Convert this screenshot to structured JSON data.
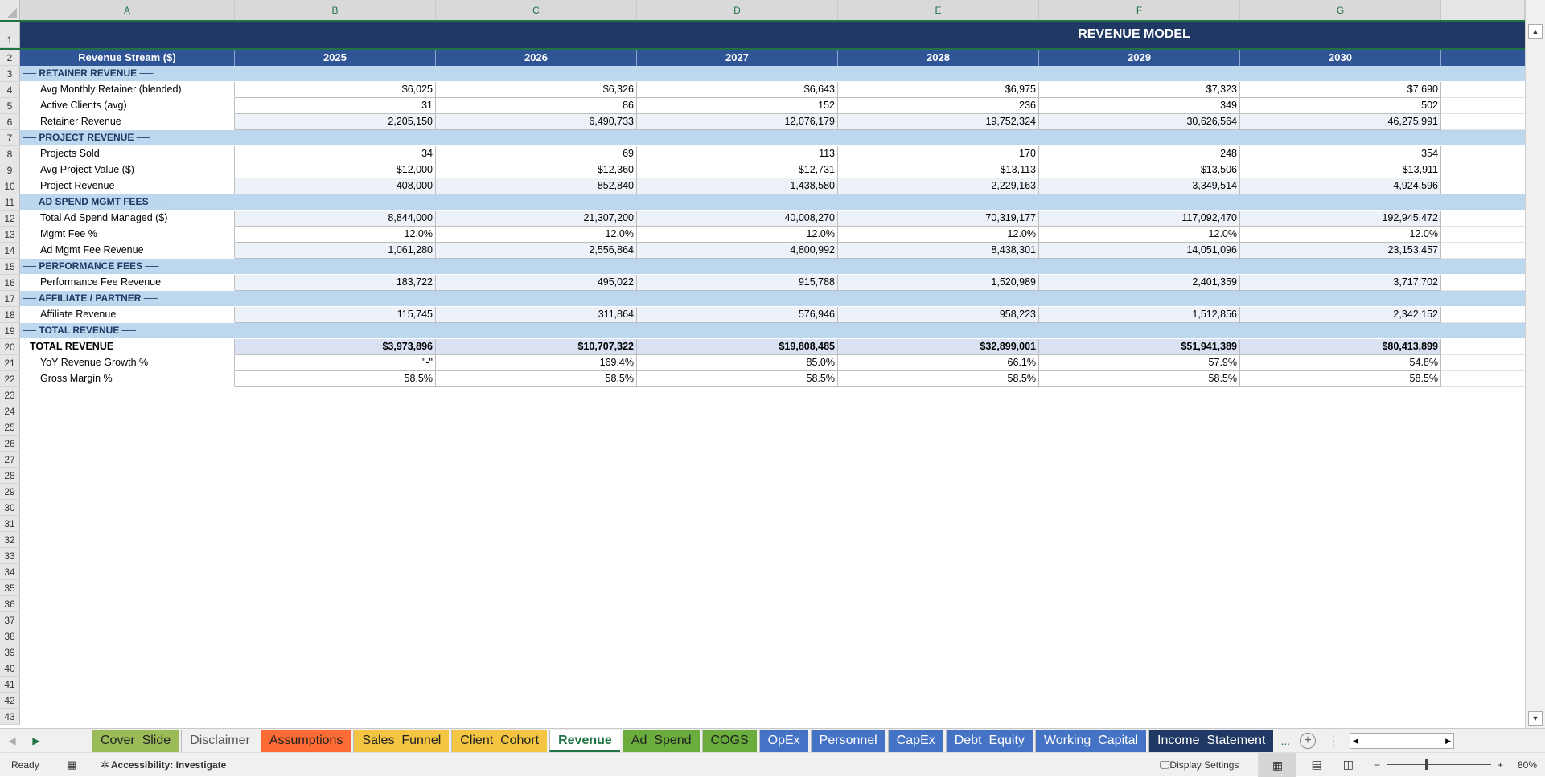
{
  "columns": [
    "A",
    "B",
    "C",
    "D",
    "E",
    "F",
    "G",
    ""
  ],
  "row_numbers": [
    1,
    2,
    3,
    4,
    5,
    6,
    7,
    8,
    9,
    10,
    11,
    12,
    13,
    14,
    15,
    16,
    17,
    18,
    19,
    20,
    21,
    22,
    23,
    24,
    25,
    26,
    27,
    28,
    29,
    30,
    31,
    32,
    33,
    34,
    35,
    36,
    37,
    38,
    39,
    40,
    41,
    42,
    43
  ],
  "title": "REVENUE MODEL",
  "header": {
    "label": "Revenue Stream ($)",
    "years": [
      "2025",
      "2026",
      "2027",
      "2028",
      "2029",
      "2030"
    ]
  },
  "rows": [
    {
      "type": "sec",
      "label": "── RETAINER REVENUE ──"
    },
    {
      "type": "data",
      "label": "Avg Monthly Retainer (blended)",
      "values": [
        "$6,025",
        "$6,326",
        "$6,643",
        "$6,975",
        "$7,323",
        "$7,690"
      ]
    },
    {
      "type": "data",
      "label": "Active Clients (avg)",
      "values": [
        "31",
        "86",
        "152",
        "236",
        "349",
        "502"
      ]
    },
    {
      "type": "shade",
      "label": "Retainer Revenue",
      "values": [
        "2,205,150",
        "6,490,733",
        "12,076,179",
        "19,752,324",
        "30,626,564",
        "46,275,991"
      ]
    },
    {
      "type": "sec",
      "label": "── PROJECT REVENUE ──"
    },
    {
      "type": "data",
      "label": "Projects Sold",
      "values": [
        "34",
        "69",
        "113",
        "170",
        "248",
        "354"
      ]
    },
    {
      "type": "data",
      "label": "Avg Project Value ($)",
      "values": [
        "$12,000",
        "$12,360",
        "$12,731",
        "$13,113",
        "$13,506",
        "$13,911"
      ]
    },
    {
      "type": "shade",
      "label": "Project Revenue",
      "values": [
        "408,000",
        "852,840",
        "1,438,580",
        "2,229,163",
        "3,349,514",
        "4,924,596"
      ]
    },
    {
      "type": "sec",
      "label": "── AD SPEND MGMT FEES ──"
    },
    {
      "type": "shade",
      "label": "Total Ad Spend Managed ($)",
      "values": [
        "8,844,000",
        "21,307,200",
        "40,008,270",
        "70,319,177",
        "117,092,470",
        "192,945,472"
      ]
    },
    {
      "type": "data",
      "label": "Mgmt Fee %",
      "values": [
        "12.0%",
        "12.0%",
        "12.0%",
        "12.0%",
        "12.0%",
        "12.0%"
      ]
    },
    {
      "type": "shade",
      "label": "Ad Mgmt Fee Revenue",
      "values": [
        "1,061,280",
        "2,556,864",
        "4,800,992",
        "8,438,301",
        "14,051,096",
        "23,153,457"
      ]
    },
    {
      "type": "sec",
      "label": "── PERFORMANCE FEES ──"
    },
    {
      "type": "shade",
      "label": "Performance Fee Revenue",
      "values": [
        "183,722",
        "495,022",
        "915,788",
        "1,520,989",
        "2,401,359",
        "3,717,702"
      ]
    },
    {
      "type": "sec",
      "label": "── AFFILIATE / PARTNER ──"
    },
    {
      "type": "shade",
      "label": "Affiliate Revenue",
      "values": [
        "115,745",
        "311,864",
        "576,946",
        "958,223",
        "1,512,856",
        "2,342,152"
      ]
    },
    {
      "type": "sec",
      "label": "── TOTAL REVENUE ──"
    },
    {
      "type": "total",
      "label": "TOTAL REVENUE",
      "values": [
        "$3,973,896",
        "$10,707,322",
        "$19,808,485",
        "$32,899,001",
        "$51,941,389",
        "$80,413,899"
      ]
    },
    {
      "type": "data",
      "label": "YoY Revenue Growth %",
      "values": [
        "\"-\"",
        "169.4%",
        "85.0%",
        "66.1%",
        "57.9%",
        "54.8%"
      ]
    },
    {
      "type": "data",
      "label": "Gross Margin %",
      "values": [
        "58.5%",
        "58.5%",
        "58.5%",
        "58.5%",
        "58.5%",
        "58.5%"
      ]
    }
  ],
  "tabs": [
    {
      "label": "Cover_Slide",
      "color": "#9bbb59"
    },
    {
      "label": "Disclaimer",
      "color": "#f0f0f0",
      "text": "#555"
    },
    {
      "label": "Assumptions",
      "color": "#ff6b35"
    },
    {
      "label": "Sales_Funnel",
      "color": "#f4c542"
    },
    {
      "label": "Client_Cohort",
      "color": "#f4c542"
    },
    {
      "label": "Revenue",
      "color": "#ffffff",
      "active": true
    },
    {
      "label": "Ad_Spend",
      "color": "#6aad3d"
    },
    {
      "label": "COGS",
      "color": "#6aad3d"
    },
    {
      "label": "OpEx",
      "color": "#4472c4",
      "text": "#fff"
    },
    {
      "label": "Personnel",
      "color": "#4472c4",
      "text": "#fff"
    },
    {
      "label": "CapEx",
      "color": "#4472c4",
      "text": "#fff"
    },
    {
      "label": "Debt_Equity",
      "color": "#4472c4",
      "text": "#fff"
    },
    {
      "label": "Working_Capital",
      "color": "#4472c4",
      "text": "#fff"
    },
    {
      "label": "Income_Statement",
      "color": "#1f3864",
      "text": "#fff"
    }
  ],
  "tab_overflow": "...",
  "status": {
    "ready": "Ready",
    "accessibility": "Accessibility: Investigate",
    "display_settings": "Display Settings",
    "zoom": "80%"
  }
}
